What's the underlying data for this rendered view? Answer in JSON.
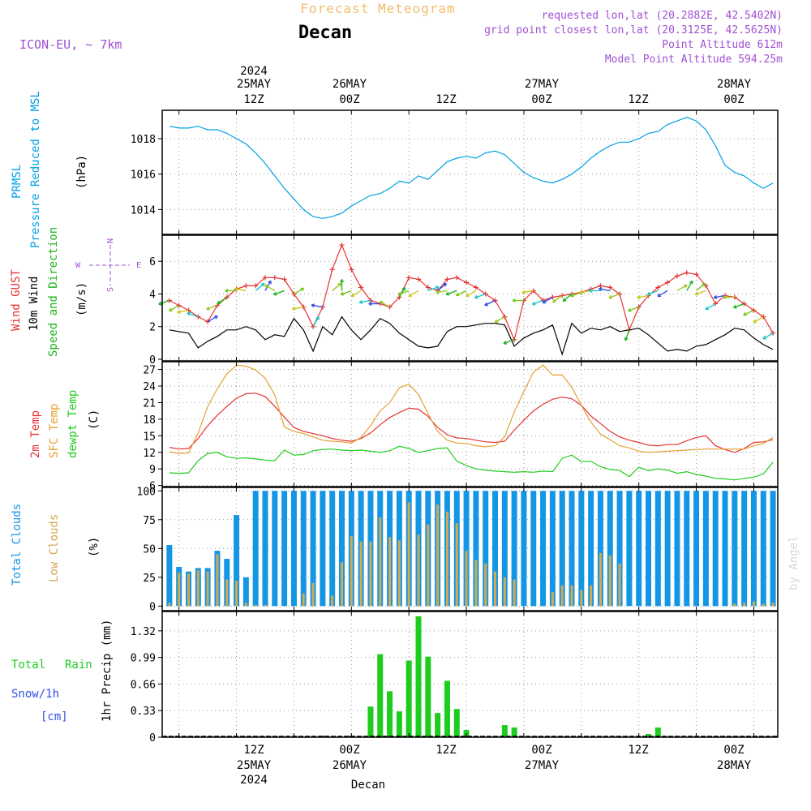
{
  "header": {
    "product": "Forecast Meteogram",
    "location": "Decan",
    "model": "ICON-EU, ~ 7km",
    "requested": "requested lon,lat (20.2882E, 42.5402N)",
    "gridpoint": "grid point closest lon,lat (20.3125E, 42.5625N)",
    "point_alt": "Point Altitude 612m",
    "model_alt": "Model Point Altitude 594.25m"
  },
  "time_axis": {
    "ticks": [
      {
        "top": [
          "2024",
          "25MAY",
          "12Z"
        ],
        "bottom": [
          "12Z",
          "25MAY",
          "2024"
        ]
      },
      {
        "top": [
          "26MAY",
          "00Z"
        ],
        "bottom": [
          "00Z",
          "26MAY"
        ]
      },
      {
        "top": [
          "12Z"
        ],
        "bottom": [
          "12Z"
        ]
      },
      {
        "top": [
          "27MAY",
          "00Z"
        ],
        "bottom": [
          "00Z",
          "27MAY"
        ]
      },
      {
        "top": [
          "12Z"
        ],
        "bottom": [
          "12Z"
        ]
      },
      {
        "top": [
          "28MAY",
          "00Z"
        ],
        "bottom": [
          "00Z",
          "28MAY"
        ]
      }
    ],
    "footer": "Decan"
  },
  "watermark": "by Angel",
  "colors": {
    "pressure": "#00a0e6",
    "gust": "#e63232",
    "wind": "#000000",
    "dir_label": "#1eb41e",
    "t2m": "#e63232",
    "sfc": "#e6a032",
    "dew": "#1ecc1e",
    "total_cloud": "#1496e6",
    "low_cloud": "#d2aa50",
    "rain": "#1ecc1e",
    "snow": "#3250e6",
    "compass": "#a050d2",
    "header_purple": "#a050d2",
    "header_orange": "#f0be6e"
  },
  "compass": {
    "n": "N",
    "s": "S",
    "e": "E",
    "w": "W"
  },
  "panels": {
    "pressure": {
      "label1": "PRMSL",
      "label2": "Pressure Reduced to MSL",
      "unit": "(hPa)",
      "ticks": [
        "1014",
        "1016",
        "1018"
      ]
    },
    "wind": {
      "label1": "Wind GUST",
      "label2": "10m Wind",
      "label3": "Speed and Direction",
      "unit": "(m/s)",
      "ticks": [
        "0",
        "2",
        "4",
        "6"
      ]
    },
    "temp": {
      "label1": "2m Temp",
      "label2": "SFC Temp",
      "label3": "dewpt Temp",
      "unit": "(C)",
      "ticks": [
        "6",
        "9",
        "12",
        "15",
        "18",
        "21",
        "24",
        "27"
      ]
    },
    "cloud": {
      "label1": "Total Clouds",
      "label2": "Low Clouds",
      "unit": "(%)",
      "ticks": [
        "0",
        "25",
        "50",
        "75",
        "100"
      ]
    },
    "precip": {
      "label1": "Total",
      "label1b": "Rain",
      "label2": "Snow/1h",
      "label3": "[cm]",
      "unit": "1hr Precip (mm)",
      "ticks": [
        "0",
        "0.33",
        "0.66",
        "0.99",
        "1.32"
      ]
    }
  },
  "chart_data": [
    {
      "type": "line",
      "title": "PRMSL Pressure Reduced to MSL",
      "ylabel": "(hPa)",
      "ylim": [
        1012.6,
        1019.6
      ],
      "x_hours": [
        0,
        2,
        4,
        6,
        8,
        10,
        12,
        14,
        16,
        18,
        20,
        22,
        24,
        26,
        28,
        30,
        32,
        34,
        36,
        38,
        40,
        42,
        44,
        46,
        48,
        50,
        52,
        54,
        56,
        58,
        60,
        62,
        64,
        66,
        68,
        70,
        72,
        74,
        76,
        78,
        80,
        82,
        84,
        86,
        88,
        90,
        92,
        94,
        96,
        98,
        100,
        102,
        104,
        106,
        108,
        110,
        112,
        114,
        116,
        118,
        120,
        122,
        124,
        126
      ],
      "series": [
        {
          "name": "PRMSL",
          "values": [
            1018.7,
            1018.6,
            1018.6,
            1018.7,
            1018.5,
            1018.5,
            1018.3,
            1018.0,
            1017.7,
            1017.2,
            1016.6,
            1015.9,
            1015.2,
            1014.6,
            1014.0,
            1013.6,
            1013.5,
            1013.6,
            1013.8,
            1014.2,
            1014.5,
            1014.8,
            1014.9,
            1015.2,
            1015.6,
            1015.5,
            1015.9,
            1015.7,
            1016.2,
            1016.7,
            1016.9,
            1017.0,
            1016.9,
            1017.2,
            1017.3,
            1017.1,
            1016.6,
            1016.1,
            1015.8,
            1015.6,
            1015.5,
            1015.7,
            1016.0,
            1016.4,
            1016.9,
            1017.3,
            1017.6,
            1017.8,
            1017.8,
            1018.0,
            1018.3,
            1018.4,
            1018.8,
            1019.0,
            1019.2,
            1019.0,
            1018.5,
            1017.6,
            1016.5,
            1016.1,
            1015.9,
            1015.5,
            1015.2,
            1015.5
          ]
        }
      ]
    },
    {
      "type": "line",
      "title": "Wind GUST / 10m Wind Speed and Direction",
      "ylabel": "(m/s)",
      "ylim": [
        -0.1,
        7.6
      ],
      "x_hours": [
        0,
        2,
        4,
        6,
        8,
        10,
        12,
        14,
        16,
        18,
        20,
        22,
        24,
        26,
        28,
        30,
        32,
        34,
        36,
        38,
        40,
        42,
        44,
        46,
        48,
        50,
        52,
        54,
        56,
        58,
        60,
        62,
        64,
        66,
        68,
        70,
        72,
        74,
        76,
        78,
        80,
        82,
        84,
        86,
        88,
        90,
        92,
        94,
        96,
        98,
        100,
        102,
        104,
        106,
        108,
        110,
        112,
        114,
        116,
        118,
        120,
        122,
        124,
        126
      ],
      "series": [
        {
          "name": "Wind GUST",
          "values": [
            3.6,
            3.3,
            3.0,
            2.6,
            2.3,
            3.3,
            3.8,
            4.3,
            4.5,
            4.5,
            5.0,
            5.0,
            4.9,
            4.0,
            3.2,
            2.0,
            3.2,
            5.5,
            7.0,
            5.5,
            4.4,
            3.6,
            3.4,
            3.2,
            3.8,
            5.0,
            4.9,
            4.4,
            4.2,
            4.9,
            5.0,
            4.7,
            4.4,
            4.0,
            3.6,
            2.6,
            1.2,
            3.6,
            4.2,
            3.6,
            3.8,
            3.9,
            4.0,
            4.1,
            4.3,
            4.5,
            4.4,
            4.0,
            1.8,
            3.2,
            3.9,
            4.4,
            4.7,
            5.1,
            5.3,
            5.2,
            4.5,
            3.4,
            3.9,
            3.8,
            3.4,
            3.0,
            2.6,
            1.6
          ]
        },
        {
          "name": "10m Wind",
          "values": [
            1.8,
            1.7,
            1.6,
            0.7,
            1.1,
            1.4,
            1.8,
            1.8,
            2.0,
            1.8,
            1.2,
            1.5,
            1.4,
            2.5,
            1.8,
            0.5,
            2.0,
            1.5,
            2.6,
            1.8,
            1.2,
            1.8,
            2.5,
            2.2,
            1.6,
            1.2,
            0.8,
            0.7,
            0.8,
            1.7,
            2.0,
            2.0,
            2.1,
            2.2,
            2.2,
            2.1,
            0.8,
            1.3,
            1.6,
            1.8,
            2.1,
            0.3,
            2.2,
            1.6,
            1.9,
            1.8,
            2.0,
            1.7,
            1.8,
            1.9,
            1.5,
            1.0,
            0.5,
            0.6,
            0.5,
            0.8,
            0.9,
            1.2,
            1.5,
            1.9,
            1.8,
            1.3,
            0.9,
            0.6
          ]
        }
      ],
      "direction_arrows": true
    },
    {
      "type": "line",
      "title": "2m Temp / SFC Temp / dewpt Temp",
      "ylabel": "(C)",
      "ylim": [
        5.8,
        28.4
      ],
      "x_hours": [
        0,
        2,
        4,
        6,
        8,
        10,
        12,
        14,
        16,
        18,
        20,
        22,
        24,
        26,
        28,
        30,
        32,
        34,
        36,
        38,
        40,
        42,
        44,
        46,
        48,
        50,
        52,
        54,
        56,
        58,
        60,
        62,
        64,
        66,
        68,
        70,
        72,
        74,
        76,
        78,
        80,
        82,
        84,
        86,
        88,
        90,
        92,
        94,
        96,
        98,
        100,
        102,
        104,
        106,
        108,
        110,
        112,
        114,
        116,
        118,
        120,
        122,
        124,
        126
      ],
      "series": [
        {
          "name": "2m Temp",
          "values": [
            12.9,
            12.6,
            12.7,
            14.5,
            16.8,
            18.7,
            20.3,
            21.8,
            22.6,
            22.7,
            22.1,
            20.3,
            18.4,
            16.5,
            15.8,
            15.4,
            15.0,
            14.5,
            14.2,
            14.0,
            14.5,
            15.5,
            17.0,
            18.3,
            19.2,
            20.0,
            19.8,
            18.5,
            16.5,
            15.2,
            14.6,
            14.5,
            14.2,
            13.9,
            13.8,
            14.0,
            16.0,
            17.8,
            19.5,
            20.7,
            21.6,
            22.0,
            21.7,
            20.5,
            18.6,
            17.2,
            15.8,
            14.8,
            14.2,
            13.8,
            13.3,
            13.2,
            13.4,
            13.4,
            14.1,
            14.7,
            15.0,
            13.2,
            12.5,
            12.0,
            12.7,
            13.8,
            13.9,
            14.3
          ]
        },
        {
          "name": "SFC Temp",
          "values": [
            12.1,
            11.8,
            11.9,
            15.5,
            20.3,
            23.5,
            26.2,
            27.8,
            27.6,
            26.9,
            25.4,
            22.4,
            16.6,
            15.8,
            15.4,
            14.8,
            14.2,
            14.0,
            13.9,
            13.7,
            14.7,
            16.8,
            19.5,
            21.0,
            23.7,
            24.3,
            22.5,
            19.0,
            15.8,
            14.2,
            13.7,
            13.6,
            13.2,
            13.0,
            13.2,
            14.8,
            19.3,
            23.0,
            26.5,
            27.8,
            26.0,
            26.0,
            23.8,
            20.5,
            17.5,
            15.3,
            14.3,
            13.2,
            12.8,
            12.2,
            12.0,
            12.1,
            12.2,
            12.3,
            12.4,
            12.5,
            12.6,
            12.6,
            12.6,
            12.6,
            12.6,
            13.2,
            13.6,
            14.7
          ]
        },
        {
          "name": "dewpt Temp",
          "values": [
            8.3,
            8.2,
            8.3,
            10.5,
            11.8,
            12.0,
            11.2,
            10.9,
            11.0,
            10.8,
            10.6,
            10.5,
            12.4,
            11.5,
            11.6,
            12.3,
            12.5,
            12.6,
            12.4,
            12.3,
            12.4,
            12.2,
            12.0,
            12.3,
            13.1,
            12.7,
            12.0,
            12.3,
            12.7,
            12.8,
            10.4,
            9.6,
            9.0,
            8.8,
            8.6,
            8.5,
            8.4,
            8.5,
            8.4,
            8.6,
            8.5,
            10.9,
            11.5,
            10.3,
            10.4,
            9.4,
            8.9,
            8.7,
            7.6,
            9.3,
            8.7,
            9.0,
            8.8,
            8.2,
            8.5,
            8.0,
            7.7,
            7.3,
            7.2,
            7.0,
            7.3,
            7.5,
            8.1,
            10.2
          ]
        }
      ]
    },
    {
      "type": "bar",
      "title": "Total Clouds / Low Clouds",
      "ylabel": "(%)",
      "ylim": [
        -4,
        103
      ],
      "x_hours": [
        0,
        2,
        4,
        6,
        8,
        10,
        12,
        14,
        16,
        18,
        20,
        22,
        24,
        26,
        28,
        30,
        32,
        34,
        36,
        38,
        40,
        42,
        44,
        46,
        48,
        50,
        52,
        54,
        56,
        58,
        60,
        62,
        64,
        66,
        68,
        70,
        72,
        74,
        76,
        78,
        80,
        82,
        84,
        86,
        88,
        90,
        92,
        94,
        96,
        98,
        100,
        102,
        104,
        106,
        108,
        110,
        112,
        114,
        116,
        118,
        120,
        122,
        124,
        126
      ],
      "series": [
        {
          "name": "Total Clouds",
          "values": [
            53,
            34,
            30,
            33,
            33,
            48,
            41,
            79,
            25,
            100,
            100,
            100,
            100,
            100,
            100,
            100,
            100,
            100,
            100,
            100,
            100,
            100,
            100,
            100,
            100,
            100,
            100,
            100,
            100,
            100,
            100,
            100,
            100,
            100,
            100,
            100,
            100,
            100,
            100,
            100,
            100,
            100,
            100,
            100,
            100,
            100,
            100,
            100,
            100,
            100,
            100,
            100,
            100,
            100,
            100,
            100,
            100,
            100,
            100,
            100,
            100,
            100,
            100,
            100
          ]
        },
        {
          "name": "Low Clouds",
          "values": [
            3,
            29,
            28,
            31,
            30,
            45,
            23,
            22,
            3,
            1,
            1,
            0,
            0,
            0,
            11,
            20,
            0,
            9,
            38,
            61,
            56,
            56,
            77,
            60,
            57,
            90,
            62,
            71,
            88,
            82,
            72,
            48,
            40,
            37,
            30,
            25,
            23,
            0,
            0,
            0,
            12,
            18,
            18,
            14,
            18,
            46,
            44,
            37,
            0,
            0,
            0,
            0,
            0,
            0,
            0,
            0,
            0,
            0,
            0,
            2,
            3,
            4,
            2,
            3
          ]
        }
      ]
    },
    {
      "type": "bar",
      "title": "1hr Precip",
      "ylabel": "1hr Precip (mm)",
      "ylim": [
        0,
        1.56
      ],
      "x_hours": [
        0,
        2,
        4,
        6,
        8,
        10,
        12,
        14,
        16,
        18,
        20,
        22,
        24,
        26,
        28,
        30,
        32,
        34,
        36,
        38,
        40,
        42,
        44,
        46,
        48,
        50,
        52,
        54,
        56,
        58,
        60,
        62,
        64,
        66,
        68,
        70,
        72,
        74,
        76,
        78,
        80,
        82,
        84,
        86,
        88,
        90,
        92,
        94,
        96,
        98,
        100,
        102,
        104,
        106,
        108,
        110,
        112,
        114,
        116,
        118,
        120,
        122,
        124,
        126
      ],
      "series": [
        {
          "name": "Total Rain",
          "values": [
            0,
            0,
            0,
            0,
            0,
            0,
            0,
            0,
            0,
            0,
            0,
            0,
            0,
            0,
            0,
            0,
            0.02,
            0,
            0,
            0.02,
            0,
            0.38,
            1.03,
            0.57,
            0.32,
            0.95,
            1.5,
            1.0,
            0.3,
            0.7,
            0.35,
            0.09,
            0,
            0,
            0,
            0.15,
            0.12,
            0,
            0,
            0,
            0,
            0,
            0,
            0,
            0,
            0,
            0,
            0,
            0,
            0,
            0.04,
            0.12,
            0,
            0,
            0,
            0,
            0,
            0,
            0,
            0,
            0,
            0,
            0,
            0.01
          ]
        },
        {
          "name": "Snow/1h",
          "values": [
            0,
            0,
            0,
            0,
            0,
            0,
            0,
            0,
            0,
            0,
            0,
            0,
            0,
            0,
            0,
            0,
            0,
            0,
            0,
            0,
            0,
            0,
            0,
            0,
            0,
            0,
            0,
            0,
            0,
            0,
            0,
            0,
            0,
            0,
            0,
            0,
            0,
            0,
            0,
            0,
            0,
            0,
            0,
            0,
            0,
            0,
            0,
            0,
            0,
            0,
            0,
            0,
            0,
            0,
            0,
            0,
            0,
            0,
            0,
            0,
            0,
            0,
            0,
            0
          ]
        }
      ]
    }
  ]
}
